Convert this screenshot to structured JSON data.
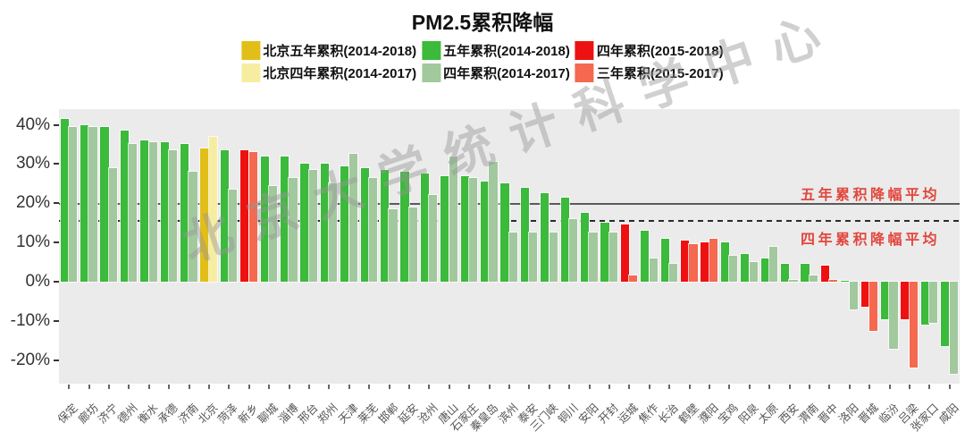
{
  "title": "PM2.5累积降幅",
  "watermark": "北京大学统计科学中心",
  "legend": {
    "items": [
      {
        "label": "北京五年累积(2014-2018)",
        "color": "#e2be18"
      },
      {
        "label": "五年累积(2014-2018)",
        "color": "#3bba3b"
      },
      {
        "label": "四年累积(2015-2018)",
        "color": "#ee1111"
      },
      {
        "label": "北京四年累积(2014-2017)",
        "color": "#f7eda0"
      },
      {
        "label": "四年累积(2014-2017)",
        "color": "#a2c89e"
      },
      {
        "label": "三年累积(2015-2017)",
        "color": "#f4694f"
      }
    ]
  },
  "chart_data": {
    "type": "bar",
    "title": "PM2.5累积降幅",
    "xlabel": "",
    "ylabel": "",
    "ylim": [
      -26,
      44
    ],
    "yticks": [
      40,
      30,
      20,
      10,
      0,
      -10,
      -20
    ],
    "ytick_labels": [
      "40%",
      "30%",
      "20%",
      "10%",
      "0%",
      "-10%",
      "-20%"
    ],
    "grid": false,
    "legend_position": "top",
    "panel_color": "#ebebeb",
    "ref_lines": [
      {
        "value": 19.8,
        "style": "solid",
        "label": "五年累积降幅平均"
      },
      {
        "value": 15.5,
        "style": "dashed",
        "label": "四年累积降幅平均"
      }
    ],
    "palette": {
      "bj": {
        "long": "#e2be18",
        "short": "#f7eda0"
      },
      "5y": {
        "long": "#3bba3b",
        "short": "#a2c89e"
      },
      "4y": {
        "long": "#ee1111",
        "short": "#f4694f"
      }
    },
    "series_meaning": {
      "bj": [
        "北京五年累积(2014-2018)",
        "北京四年累积(2014-2017)"
      ],
      "5y": [
        "五年累积(2014-2018)",
        "四年累积(2014-2017)"
      ],
      "4y": [
        "四年累积(2015-2018)",
        "三年累积(2015-2017)"
      ]
    },
    "cities": [
      {
        "name": "保定",
        "type": "5y",
        "v1": 41.5,
        "v2": 39.5
      },
      {
        "name": "廊坊",
        "type": "5y",
        "v1": 40.0,
        "v2": 39.5
      },
      {
        "name": "济宁",
        "type": "5y",
        "v1": 39.5,
        "v2": 29.0
      },
      {
        "name": "德州",
        "type": "5y",
        "v1": 38.5,
        "v2": 35.0
      },
      {
        "name": "衡水",
        "type": "5y",
        "v1": 36.0,
        "v2": 35.5
      },
      {
        "name": "承德",
        "type": "5y",
        "v1": 35.5,
        "v2": 33.5
      },
      {
        "name": "济南",
        "type": "5y",
        "v1": 35.0,
        "v2": 28.0
      },
      {
        "name": "北京",
        "type": "bj",
        "v1": 34.0,
        "v2": 37.0
      },
      {
        "name": "菏泽",
        "type": "5y",
        "v1": 33.5,
        "v2": 23.5
      },
      {
        "name": "新乡",
        "type": "4y",
        "v1": 33.5,
        "v2": 33.0
      },
      {
        "name": "聊城",
        "type": "5y",
        "v1": 32.0,
        "v2": 24.5
      },
      {
        "name": "淄博",
        "type": "5y",
        "v1": 32.0,
        "v2": 26.5
      },
      {
        "name": "邢台",
        "type": "5y",
        "v1": 30.0,
        "v2": 28.5
      },
      {
        "name": "郑州",
        "type": "5y",
        "v1": 30.0,
        "v2": 25.0
      },
      {
        "name": "天津",
        "type": "5y",
        "v1": 29.5,
        "v2": 32.5
      },
      {
        "name": "莱芜",
        "type": "5y",
        "v1": 29.0,
        "v2": 26.5
      },
      {
        "name": "邯郸",
        "type": "5y",
        "v1": 28.5,
        "v2": 18.5
      },
      {
        "name": "延安",
        "type": "5y",
        "v1": 28.0,
        "v2": 19.0
      },
      {
        "name": "沧州",
        "type": "5y",
        "v1": 27.5,
        "v2": 22.0
      },
      {
        "name": "唐山",
        "type": "5y",
        "v1": 27.0,
        "v2": 32.0
      },
      {
        "name": "石家庄",
        "type": "5y",
        "v1": 27.0,
        "v2": 26.5
      },
      {
        "name": "秦皇岛",
        "type": "5y",
        "v1": 25.5,
        "v2": 30.5
      },
      {
        "name": "滨州",
        "type": "5y",
        "v1": 25.0,
        "v2": 12.5
      },
      {
        "name": "泰安",
        "type": "5y",
        "v1": 24.0,
        "v2": 12.5
      },
      {
        "name": "三门峡",
        "type": "5y",
        "v1": 22.5,
        "v2": 12.5
      },
      {
        "name": "铜川",
        "type": "5y",
        "v1": 21.5,
        "v2": 16.0
      },
      {
        "name": "安阳",
        "type": "5y",
        "v1": 17.5,
        "v2": 12.5
      },
      {
        "name": "开封",
        "type": "5y",
        "v1": 15.0,
        "v2": 12.5
      },
      {
        "name": "运城",
        "type": "4y",
        "v1": 14.5,
        "v2": 1.5
      },
      {
        "name": "焦作",
        "type": "5y",
        "v1": 13.0,
        "v2": 6.0
      },
      {
        "name": "长治",
        "type": "5y",
        "v1": 11.0,
        "v2": 4.5
      },
      {
        "name": "鹤壁",
        "type": "4y",
        "v1": 10.5,
        "v2": 9.5
      },
      {
        "name": "濮阳",
        "type": "4y",
        "v1": 10.0,
        "v2": 11.0
      },
      {
        "name": "宝鸡",
        "type": "5y",
        "v1": 10.0,
        "v2": 6.5
      },
      {
        "name": "阳泉",
        "type": "5y",
        "v1": 7.0,
        "v2": 5.0
      },
      {
        "name": "太原",
        "type": "5y",
        "v1": 6.0,
        "v2": 9.0
      },
      {
        "name": "西安",
        "type": "5y",
        "v1": 4.5,
        "v2": 0.5
      },
      {
        "name": "渭南",
        "type": "5y",
        "v1": 4.5,
        "v2": 1.5
      },
      {
        "name": "晋中",
        "type": "4y",
        "v1": 4.0,
        "v2": 0.5
      },
      {
        "name": "洛阳",
        "type": "5y",
        "v1": 0.0,
        "v2": -7.0
      },
      {
        "name": "晋城",
        "type": "4y",
        "v1": -6.5,
        "v2": -12.5
      },
      {
        "name": "临汾",
        "type": "5y",
        "v1": -9.5,
        "v2": -17.0
      },
      {
        "name": "吕梁",
        "type": "4y",
        "v1": -9.5,
        "v2": -22.0
      },
      {
        "name": "张家口",
        "type": "5y",
        "v1": -11.0,
        "v2": -10.5
      },
      {
        "name": "咸阳",
        "type": "5y",
        "v1": -16.5,
        "v2": -23.5
      }
    ]
  }
}
